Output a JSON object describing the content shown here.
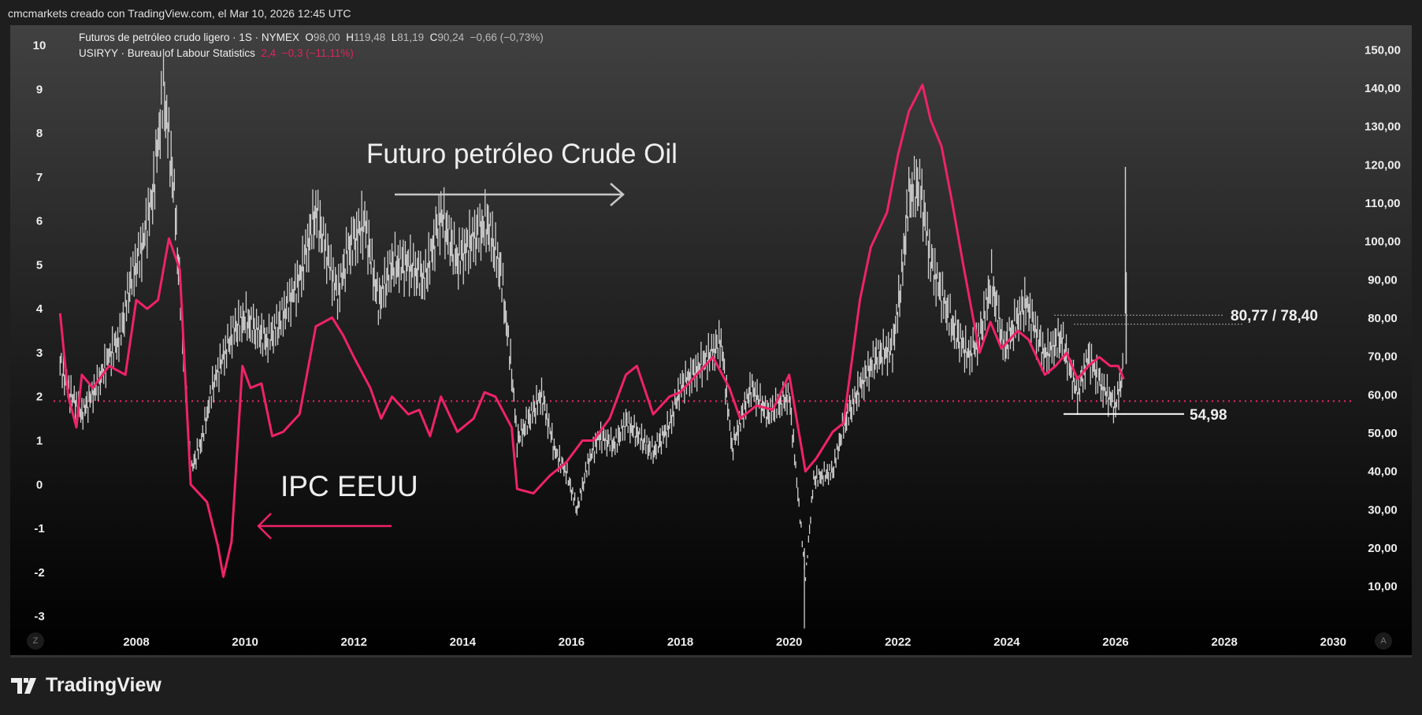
{
  "credit": "cmcmarkets creado con TradingView.com, el Mar 10, 2026 12:45 UTC",
  "legend": {
    "oil": {
      "name": "Futuros de petróleo crudo ligero · 1S · NYMEX",
      "o_label": "O",
      "o": "98,00",
      "h_label": "H",
      "h": "119,48",
      "l_label": "L",
      "l": "81,19",
      "c_label": "C",
      "c": "90,24",
      "change": "−0,66 (−0,73%)"
    },
    "cpi": {
      "name": "USIRYY · Bureau of Labour Statistics",
      "value": "2,4",
      "change": "−0,3 (−11,11%)"
    }
  },
  "annotations": {
    "oil_title": "Futuro petróleo Crude Oil",
    "cpi_title": "IPC EEUU",
    "level_high": "80,77 / 78,40",
    "level_low": "54,98"
  },
  "buttons": {
    "left": "Z",
    "right": "A"
  },
  "logo": "TradingView",
  "chart_data": {
    "type": "line",
    "colors": {
      "oil": "#d0d0d0",
      "cpi": "#f0226a",
      "reference": "#f0226a"
    },
    "x_ticks": [
      "2008",
      "2010",
      "2012",
      "2014",
      "2016",
      "2018",
      "2020",
      "2022",
      "2024",
      "2026",
      "2028",
      "2030"
    ],
    "left_axis": {
      "ylim": [
        -3,
        10
      ],
      "ticks": [
        "10",
        "9",
        "8",
        "7",
        "6",
        "5",
        "4",
        "3",
        "2",
        "1",
        "0",
        "-1",
        "-2",
        "-3"
      ]
    },
    "right_axis": {
      "ylim": [
        10,
        150
      ],
      "ticks": [
        "150,00",
        "140,00",
        "130,00",
        "120,00",
        "110,00",
        "100,00",
        "90,00",
        "80,00",
        "70,00",
        "60,00",
        "50,00",
        "40,00",
        "30,00",
        "20,00",
        "10,00"
      ]
    },
    "reference_line_cpi": 1.9,
    "price_levels": [
      80.77,
      78.4,
      54.98
    ],
    "last_bar": {
      "year": 2026.18,
      "open": 98.0,
      "high": 119.48,
      "low": 81.19,
      "close": 90.24
    },
    "series": [
      {
        "key": "oil",
        "axis": "right",
        "style": "bars",
        "points": [
          [
            2006.6,
            68
          ],
          [
            2006.8,
            60
          ],
          [
            2007.0,
            55
          ],
          [
            2007.3,
            63
          ],
          [
            2007.5,
            70
          ],
          [
            2007.7,
            75
          ],
          [
            2007.9,
            90
          ],
          [
            2008.1,
            98
          ],
          [
            2008.3,
            112
          ],
          [
            2008.5,
            140
          ],
          [
            2008.7,
            112
          ],
          [
            2008.85,
            75
          ],
          [
            2009.0,
            40
          ],
          [
            2009.2,
            48
          ],
          [
            2009.4,
            62
          ],
          [
            2009.6,
            70
          ],
          [
            2009.8,
            77
          ],
          [
            2010.0,
            80
          ],
          [
            2010.4,
            74
          ],
          [
            2010.6,
            78
          ],
          [
            2010.8,
            84
          ],
          [
            2011.0,
            90
          ],
          [
            2011.3,
            108
          ],
          [
            2011.5,
            97
          ],
          [
            2011.7,
            86
          ],
          [
            2011.9,
            98
          ],
          [
            2012.2,
            105
          ],
          [
            2012.45,
            84
          ],
          [
            2012.7,
            94
          ],
          [
            2013.0,
            94
          ],
          [
            2013.3,
            90
          ],
          [
            2013.6,
            107
          ],
          [
            2013.9,
            95
          ],
          [
            2014.2,
            101
          ],
          [
            2014.45,
            105
          ],
          [
            2014.7,
            92
          ],
          [
            2014.9,
            66
          ],
          [
            2015.0,
            48
          ],
          [
            2015.3,
            56
          ],
          [
            2015.45,
            60
          ],
          [
            2015.7,
            45
          ],
          [
            2015.9,
            40
          ],
          [
            2016.1,
            30
          ],
          [
            2016.3,
            42
          ],
          [
            2016.5,
            49
          ],
          [
            2016.8,
            47
          ],
          [
            2017.0,
            53
          ],
          [
            2017.5,
            45
          ],
          [
            2017.8,
            52
          ],
          [
            2018.0,
            62
          ],
          [
            2018.4,
            68
          ],
          [
            2018.75,
            74
          ],
          [
            2018.95,
            46
          ],
          [
            2019.3,
            62
          ],
          [
            2019.6,
            55
          ],
          [
            2020.0,
            60
          ],
          [
            2020.2,
            28
          ],
          [
            2020.3,
            12
          ],
          [
            2020.45,
            38
          ],
          [
            2020.8,
            40
          ],
          [
            2021.0,
            52
          ],
          [
            2021.3,
            62
          ],
          [
            2021.6,
            70
          ],
          [
            2021.9,
            72
          ],
          [
            2022.05,
            88
          ],
          [
            2022.2,
            112
          ],
          [
            2022.4,
            115
          ],
          [
            2022.6,
            95
          ],
          [
            2022.8,
            86
          ],
          [
            2023.0,
            78
          ],
          [
            2023.3,
            70
          ],
          [
            2023.5,
            75
          ],
          [
            2023.72,
            90
          ],
          [
            2023.95,
            72
          ],
          [
            2024.2,
            80
          ],
          [
            2024.35,
            84
          ],
          [
            2024.7,
            70
          ],
          [
            2025.0,
            75
          ],
          [
            2025.3,
            60
          ],
          [
            2025.5,
            70
          ],
          [
            2025.75,
            62
          ],
          [
            2026.0,
            57
          ],
          [
            2026.15,
            67
          ]
        ]
      },
      {
        "key": "cpi",
        "axis": "left",
        "style": "line",
        "points": [
          [
            2006.6,
            3.9
          ],
          [
            2006.75,
            2.0
          ],
          [
            2006.9,
            1.3
          ],
          [
            2007.0,
            2.5
          ],
          [
            2007.2,
            2.2
          ],
          [
            2007.5,
            2.7
          ],
          [
            2007.8,
            2.5
          ],
          [
            2008.0,
            4.2
          ],
          [
            2008.2,
            4.0
          ],
          [
            2008.4,
            4.2
          ],
          [
            2008.6,
            5.6
          ],
          [
            2008.8,
            4.9
          ],
          [
            2009.0,
            0.0
          ],
          [
            2009.3,
            -0.4
          ],
          [
            2009.5,
            -1.4
          ],
          [
            2009.6,
            -2.1
          ],
          [
            2009.75,
            -1.3
          ],
          [
            2009.95,
            2.7
          ],
          [
            2010.1,
            2.2
          ],
          [
            2010.3,
            2.3
          ],
          [
            2010.5,
            1.1
          ],
          [
            2010.7,
            1.2
          ],
          [
            2011.0,
            1.6
          ],
          [
            2011.3,
            3.6
          ],
          [
            2011.6,
            3.8
          ],
          [
            2011.8,
            3.4
          ],
          [
            2012.0,
            2.9
          ],
          [
            2012.3,
            2.2
          ],
          [
            2012.5,
            1.5
          ],
          [
            2012.7,
            2.0
          ],
          [
            2013.0,
            1.6
          ],
          [
            2013.2,
            1.7
          ],
          [
            2013.4,
            1.1
          ],
          [
            2013.6,
            2.0
          ],
          [
            2013.9,
            1.2
          ],
          [
            2014.2,
            1.5
          ],
          [
            2014.4,
            2.1
          ],
          [
            2014.6,
            2.0
          ],
          [
            2014.9,
            1.3
          ],
          [
            2015.0,
            -0.1
          ],
          [
            2015.3,
            -0.2
          ],
          [
            2015.6,
            0.2
          ],
          [
            2015.9,
            0.5
          ],
          [
            2016.2,
            1.0
          ],
          [
            2016.4,
            1.0
          ],
          [
            2016.7,
            1.5
          ],
          [
            2017.0,
            2.5
          ],
          [
            2017.2,
            2.7
          ],
          [
            2017.5,
            1.6
          ],
          [
            2017.8,
            2.0
          ],
          [
            2018.0,
            2.1
          ],
          [
            2018.3,
            2.5
          ],
          [
            2018.6,
            2.9
          ],
          [
            2018.9,
            2.2
          ],
          [
            2019.1,
            1.5
          ],
          [
            2019.4,
            1.8
          ],
          [
            2019.7,
            1.7
          ],
          [
            2020.0,
            2.5
          ],
          [
            2020.3,
            0.3
          ],
          [
            2020.5,
            0.6
          ],
          [
            2020.8,
            1.2
          ],
          [
            2021.0,
            1.4
          ],
          [
            2021.3,
            4.2
          ],
          [
            2021.5,
            5.4
          ],
          [
            2021.8,
            6.2
          ],
          [
            2022.0,
            7.5
          ],
          [
            2022.2,
            8.5
          ],
          [
            2022.45,
            9.1
          ],
          [
            2022.6,
            8.3
          ],
          [
            2022.8,
            7.7
          ],
          [
            2023.0,
            6.4
          ],
          [
            2023.2,
            5.0
          ],
          [
            2023.5,
            3.0
          ],
          [
            2023.7,
            3.7
          ],
          [
            2023.9,
            3.1
          ],
          [
            2024.2,
            3.5
          ],
          [
            2024.4,
            3.3
          ],
          [
            2024.7,
            2.5
          ],
          [
            2024.9,
            2.7
          ],
          [
            2025.1,
            3.0
          ],
          [
            2025.3,
            2.4
          ],
          [
            2025.5,
            2.7
          ],
          [
            2025.7,
            2.9
          ],
          [
            2025.9,
            2.7
          ],
          [
            2026.05,
            2.7
          ],
          [
            2026.15,
            2.4
          ]
        ]
      }
    ]
  }
}
